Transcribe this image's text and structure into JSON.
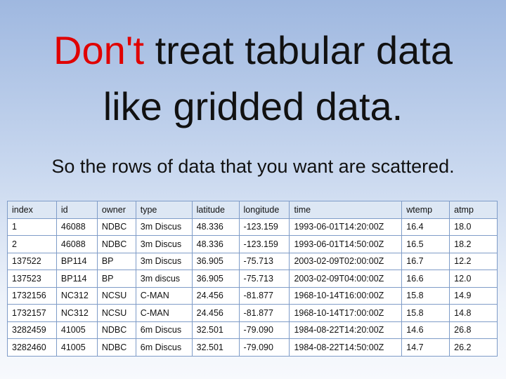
{
  "title": {
    "highlight": "Don't",
    "line1": "treat tabular data",
    "line2": "like gridded data."
  },
  "subtitle": "So the rows of data that you want are scattered.",
  "table": {
    "header": [
      "index",
      "id",
      "owner",
      "type",
      "latitude",
      "longitude",
      "time",
      "wtemp",
      "atmp"
    ],
    "rows": [
      [
        "1",
        "46088",
        "NDBC",
        "3m Discus",
        "48.336",
        "-123.159",
        "1993-06-01T14:20:00Z",
        "16.4",
        "18.0"
      ],
      [
        "2",
        "46088",
        "NDBC",
        "3m Discus",
        "48.336",
        "-123.159",
        "1993-06-01T14:50:00Z",
        "16.5",
        "18.2"
      ],
      [
        "137522",
        "BP114",
        "BP",
        "3m Discus",
        "36.905",
        "-75.713",
        "2003-02-09T02:00:00Z",
        "16.7",
        "12.2"
      ],
      [
        "137523",
        "BP114",
        "BP",
        "3m discus",
        "36.905",
        "-75.713",
        "2003-02-09T04:00:00Z",
        "16.6",
        "12.0"
      ],
      [
        "1732156",
        "NC312",
        "NCSU",
        "C-MAN",
        "24.456",
        "-81.877",
        "1968-10-14T16:00:00Z",
        "15.8",
        "14.9"
      ],
      [
        "1732157",
        "NC312",
        "NCSU",
        "C-MAN",
        "24.456",
        "-81.877",
        "1968-10-14T17:00:00Z",
        "15.8",
        "14.8"
      ],
      [
        "3282459",
        "41005",
        "NDBC",
        "6m Discus",
        "32.501",
        "-79.090",
        "1984-08-22T14:20:00Z",
        "14.6",
        "26.8"
      ],
      [
        "3282460",
        "41005",
        "NDBC",
        "6m Discus",
        "32.501",
        "-79.090",
        "1984-08-22T14:50:00Z",
        "14.7",
        "26.2"
      ]
    ]
  }
}
